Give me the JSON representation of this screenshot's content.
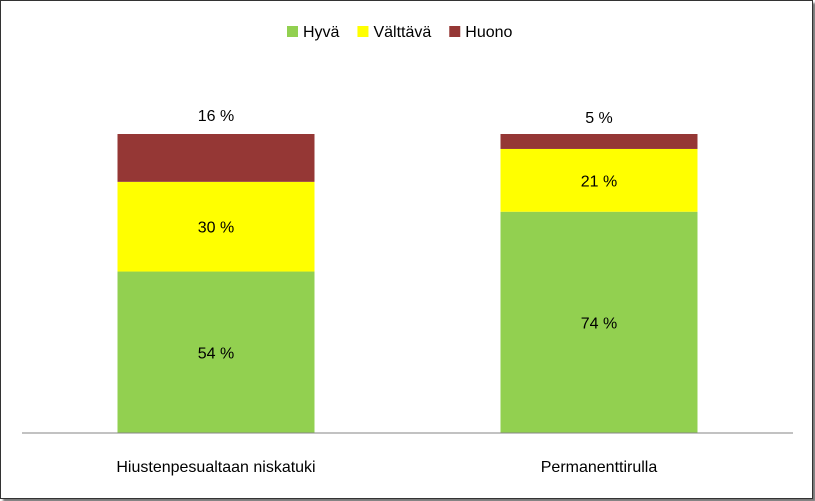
{
  "chart_data": {
    "type": "bar",
    "stacked": true,
    "categories": [
      "Hiustenpesualtaan niskatuki",
      "Permanenttirulla"
    ],
    "series": [
      {
        "name": "Hyvä",
        "values": [
          54,
          74
        ],
        "color": "#92D050",
        "labels": [
          "54 %",
          "74 %"
        ]
      },
      {
        "name": "Välttävä",
        "values": [
          30,
          21
        ],
        "color": "#FFFF00",
        "labels": [
          "30 %",
          "21 %"
        ]
      },
      {
        "name": "Huono",
        "values": [
          16,
          5
        ],
        "color": "#953735",
        "labels": [
          "16 %",
          "5 %"
        ]
      }
    ],
    "ylim": [
      0,
      100
    ],
    "legend_position": "top",
    "grid": false
  }
}
